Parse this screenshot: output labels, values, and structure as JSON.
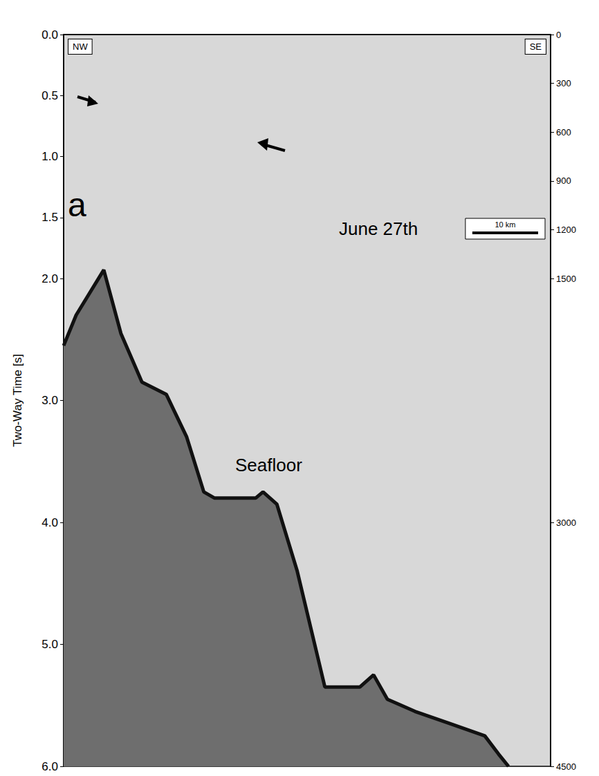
{
  "chart_data": {
    "type": "line",
    "y_label": "Two-Way Time [s]",
    "xlim": [
      0,
      74
    ],
    "ylim": [
      0,
      6
    ],
    "yticks": [
      {
        "value": 0,
        "label": "0.0"
      },
      {
        "value": 0.5,
        "label": "0.5"
      },
      {
        "value": 1,
        "label": "1.0"
      },
      {
        "value": 1.5,
        "label": "1.5"
      },
      {
        "value": 2,
        "label": "2.0"
      },
      {
        "value": 3,
        "label": "3.0"
      },
      {
        "value": 4,
        "label": "4.0"
      },
      {
        "value": 5,
        "label": "5.0"
      },
      {
        "value": 6,
        "label": "6.0"
      }
    ],
    "y2lim": [
      0,
      4500
    ],
    "y2ticks": [
      0,
      300,
      600,
      900,
      1200,
      1500,
      3000,
      4500
    ],
    "tick_labels": "y",
    "grid": false,
    "series": [
      {
        "name": "Seafloor",
        "color": "#111111",
        "x": [
          0,
          1.9,
          6.1,
          8.7,
          11.9,
          15.6,
          18.7,
          21.3,
          22.9,
          29.2,
          30.3,
          32.4,
          35.5,
          39.7,
          45.0,
          47.1,
          49.2,
          53.4,
          58.7,
          64.0,
          66.1,
          67.6
        ],
        "values": [
          2.55,
          2.3,
          1.93,
          2.45,
          2.85,
          2.95,
          3.3,
          3.75,
          3.8,
          3.8,
          3.75,
          3.85,
          4.4,
          5.35,
          5.35,
          5.25,
          5.45,
          5.55,
          5.65,
          5.75,
          5.9,
          6.0
        ]
      }
    ],
    "annotations": [
      "NW",
      "SE",
      "a",
      "June 27th"
    ],
    "scale_bar": {
      "label": "10 km",
      "length": 10
    }
  }
}
